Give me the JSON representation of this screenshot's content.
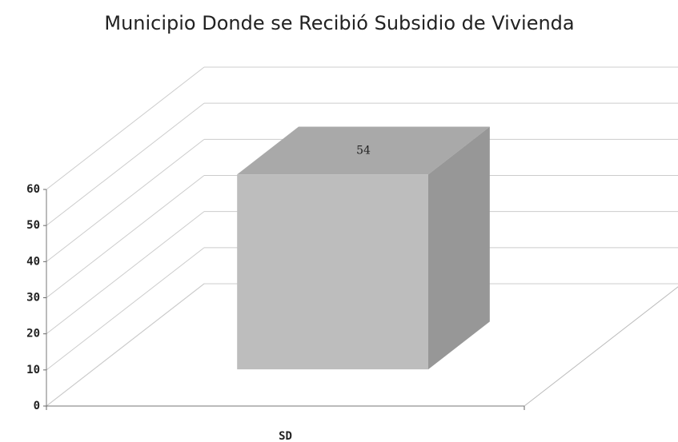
{
  "chart_data": {
    "type": "bar3d",
    "title": "Municipio Donde se Recibió Subsidio de Vivienda",
    "categories": [
      "SD"
    ],
    "values": [
      54
    ],
    "color": "#bdbdbd",
    "ylim": [
      0,
      60
    ],
    "yticks": [
      0,
      10,
      20,
      30,
      40,
      50,
      60
    ],
    "grid": true
  }
}
